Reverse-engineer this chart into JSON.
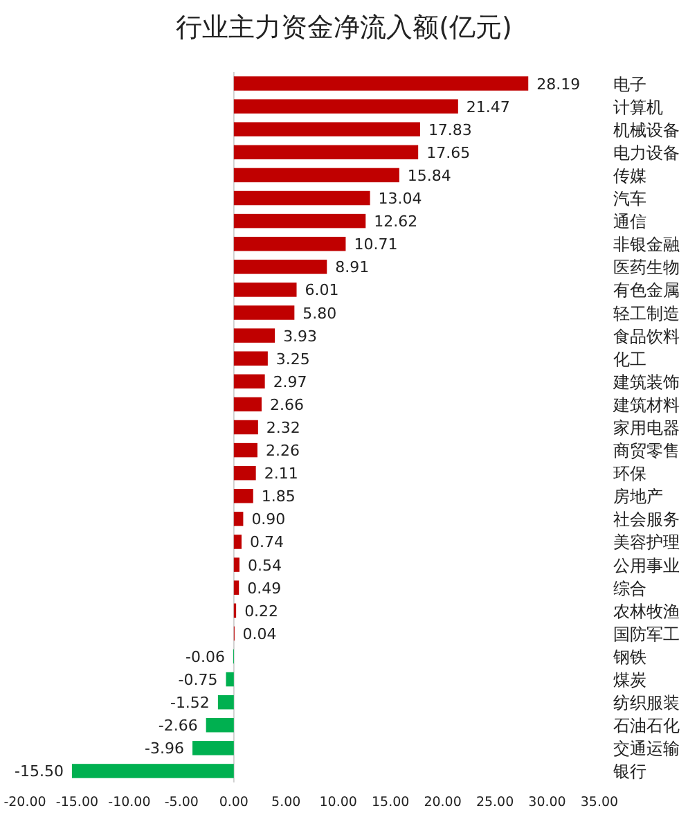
{
  "chart_data": {
    "type": "bar",
    "orientation": "horizontal",
    "title": "行业主力资金净流入额(亿元)",
    "categories": [
      "电子",
      "计算机",
      "机械设备",
      "电力设备",
      "传媒",
      "汽车",
      "通信",
      "非银金融",
      "医药生物",
      "有色金属",
      "轻工制造",
      "食品饮料",
      "化工",
      "建筑装饰",
      "建筑材料",
      "家用电器",
      "商贸零售",
      "环保",
      "房地产",
      "社会服务",
      "美容护理",
      "公用事业",
      "综合",
      "农林牧渔",
      "国防军工",
      "钢铁",
      "煤炭",
      "纺织服装",
      "石油石化",
      "交通运输",
      "银行"
    ],
    "values": [
      28.19,
      21.47,
      17.83,
      17.65,
      15.84,
      13.04,
      12.62,
      10.71,
      8.91,
      6.01,
      5.8,
      3.93,
      3.25,
      2.97,
      2.66,
      2.32,
      2.26,
      2.11,
      1.85,
      0.9,
      0.74,
      0.54,
      0.49,
      0.22,
      0.04,
      -0.06,
      -0.75,
      -1.52,
      -2.66,
      -3.96,
      -15.5
    ],
    "value_labels": [
      "28.19",
      "21.47",
      "17.83",
      "17.65",
      "15.84",
      "13.04",
      "12.62",
      "10.71",
      "8.91",
      "6.01",
      "5.80",
      "3.93",
      "3.25",
      "2.97",
      "2.66",
      "2.32",
      "2.26",
      "2.11",
      "1.85",
      "0.90",
      "0.74",
      "0.54",
      "0.49",
      "0.22",
      "0.04",
      "-0.06",
      "-0.75",
      "-1.52",
      "-2.66",
      "-3.96",
      "-15.50"
    ],
    "colors": [
      "#c00000",
      "#c00000",
      "#c00000",
      "#c00000",
      "#c00000",
      "#c00000",
      "#c00000",
      "#c00000",
      "#c00000",
      "#c00000",
      "#c00000",
      "#c00000",
      "#c00000",
      "#c00000",
      "#c00000",
      "#c00000",
      "#c00000",
      "#c00000",
      "#c00000",
      "#c00000",
      "#c00000",
      "#c00000",
      "#c00000",
      "#c00000",
      "#c00000",
      "#00b050",
      "#00b050",
      "#00b050",
      "#00b050",
      "#00b050",
      "#00b050"
    ],
    "xlim": [
      -20,
      35
    ],
    "xticks": [
      {
        "value": -20,
        "label": "-20.00"
      },
      {
        "value": -15,
        "label": "-15.00"
      },
      {
        "value": -10,
        "label": "-10.00"
      },
      {
        "value": -5,
        "label": "-5.00"
      },
      {
        "value": 0,
        "label": "0.00"
      },
      {
        "value": 5,
        "label": "5.00"
      },
      {
        "value": 10,
        "label": "10.00"
      },
      {
        "value": 15,
        "label": "15.00"
      },
      {
        "value": 20,
        "label": "20.00"
      },
      {
        "value": 25,
        "label": "25.00"
      },
      {
        "value": 30,
        "label": "30.00"
      },
      {
        "value": 35,
        "label": "35.00"
      }
    ]
  }
}
